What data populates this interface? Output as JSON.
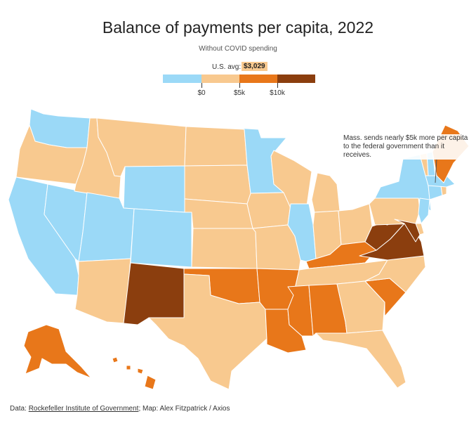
{
  "title": "Balance of payments per capita, 2022",
  "subtitle": "Without COVID spending",
  "legend": {
    "avg_label": "U.S. avg:",
    "avg_value": "$3,029",
    "ticks": [
      "$0",
      "$5k",
      "$10k"
    ],
    "bins": [
      {
        "color": "#9bd9f7",
        "meaning": "below $0"
      },
      {
        "color": "#f8c98f",
        "meaning": "$0 to $5k"
      },
      {
        "color": "#e8771a",
        "meaning": "$5k to $10k"
      },
      {
        "color": "#8b3e0e",
        "meaning": "$10k and above"
      }
    ]
  },
  "annotation": "Mass. sends nearly $5k more per capita to the federal government than it receives.",
  "footer": {
    "data_prefix": "Data:",
    "source": "Rockefeller Institute of Government",
    "credit": "; Map: Alex Fitzpatrick / Axios"
  },
  "states": {
    "WA": 0,
    "OR": 1,
    "CA": 0,
    "NV": 0,
    "ID": 1,
    "MT": 1,
    "WY": 0,
    "UT": 0,
    "AZ": 1,
    "CO": 0,
    "NM": 3,
    "ND": 1,
    "SD": 1,
    "NE": 1,
    "KS": 1,
    "OK": 2,
    "TX": 1,
    "MN": 0,
    "IA": 1,
    "MO": 1,
    "AR": 2,
    "LA": 2,
    "WI": 1,
    "IL": 0,
    "MI": 1,
    "IN": 1,
    "OH": 1,
    "KY": 2,
    "TN": 1,
    "MS": 2,
    "AL": 2,
    "GA": 1,
    "FL": 1,
    "SC": 2,
    "NC": 1,
    "VA": 3,
    "WV": 3,
    "PA": 1,
    "NY": 0,
    "NJ": 0,
    "DE": 1,
    "MD": 3,
    "CT": 0,
    "RI": 1,
    "MA": 0,
    "VT": 1,
    "NH": 0,
    "ME": 2,
    "AK": 2,
    "HI": 2
  }
}
